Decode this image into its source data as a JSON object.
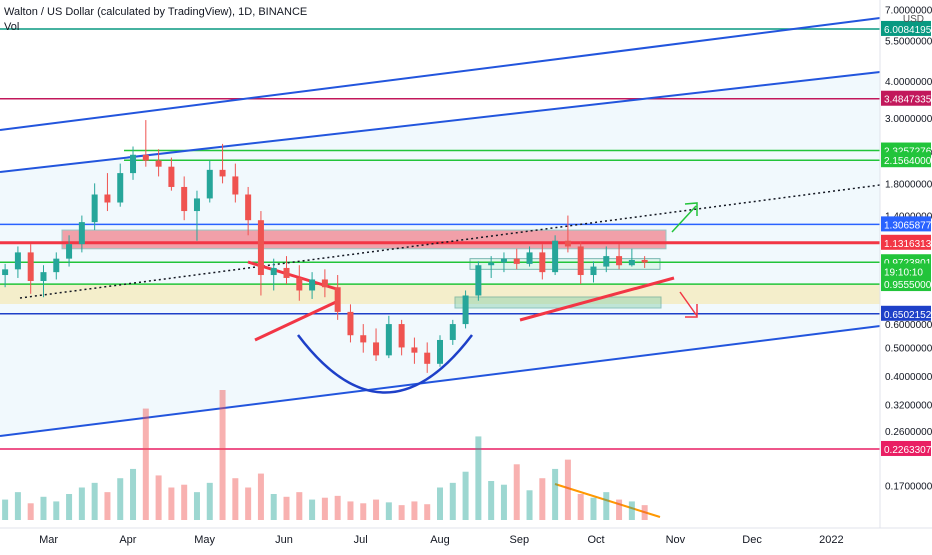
{
  "header": {
    "title": "Walton / US Dollar (calculated by TradingView), 1D, BINANCE",
    "volume_label": "Vol",
    "currency": "USD"
  },
  "chart_data": {
    "type": "candlestick",
    "log_scale": true,
    "grid": false,
    "x_axis": {
      "labels": [
        "Mar",
        "Apr",
        "May",
        "Jun",
        "Jul",
        "Aug",
        "Sep",
        "Oct",
        "Nov",
        "Dec",
        "2022"
      ],
      "label_dates": [
        "2021-03-01",
        "2021-04-01",
        "2021-05-01",
        "2021-06-01",
        "2021-07-01",
        "2021-08-01",
        "2021-09-01",
        "2021-10-01",
        "2021-11-01",
        "2021-12-01",
        "2022-01-01"
      ],
      "range": [
        "2021-02-10",
        "2022-01-20"
      ]
    },
    "y_axis": {
      "tick_values": [
        7.0,
        5.5,
        4.0,
        3.0,
        2.3,
        1.8,
        1.4,
        0.6,
        0.5,
        0.4,
        0.32,
        0.26,
        0.17
      ],
      "tick_labels": [
        "7.0000000",
        "5.5000000",
        "4.0000000",
        "3.0000000",
        "2.3000000",
        "1.8000000",
        "1.4000000",
        "0.6000000",
        "0.5000000",
        "0.4000000",
        "0.3200000",
        "0.2600000",
        "0.1700000"
      ],
      "range": [
        0.13,
        7.3
      ]
    },
    "price_levels": [
      {
        "label": "6.00841950",
        "value": 6.0084195,
        "color": "#089981"
      },
      {
        "label": "3.48473357",
        "value": 3.48473357,
        "color": "#c2185b"
      },
      {
        "label": "2.32572768",
        "value": 2.32572768,
        "color": "#22c43a"
      },
      {
        "label": "2.15640000",
        "value": 2.1564,
        "color": "#22c43a"
      },
      {
        "label": "1.30658778",
        "value": 1.30658778,
        "color": "#2962ff"
      },
      {
        "label": "1.13163136",
        "value": 1.13163136,
        "color": "#f23645"
      },
      {
        "label": "0.97238014",
        "value": 0.97238014,
        "color": "#22c43a"
      },
      {
        "label": "19:10:10",
        "value": 0.905,
        "color": "#22c43a"
      },
      {
        "label": "0.95550000",
        "value": 0.82,
        "color": "#22c43a"
      },
      {
        "label": "0.65021520",
        "value": 0.6502152,
        "color": "#1e40c8"
      },
      {
        "label": "0.22633074",
        "value": 0.22633074,
        "color": "#e91e63"
      }
    ],
    "candles": [
      {
        "date": "2021-02-12",
        "open": 0.88,
        "high": 0.96,
        "low": 0.8,
        "close": 0.92
      },
      {
        "date": "2021-02-17",
        "open": 0.92,
        "high": 1.1,
        "low": 0.86,
        "close": 1.05
      },
      {
        "date": "2021-02-22",
        "open": 1.05,
        "high": 1.12,
        "low": 0.76,
        "close": 0.84
      },
      {
        "date": "2021-02-27",
        "open": 0.84,
        "high": 0.95,
        "low": 0.74,
        "close": 0.9
      },
      {
        "date": "2021-03-04",
        "open": 0.9,
        "high": 1.05,
        "low": 0.85,
        "close": 1.0
      },
      {
        "date": "2021-03-09",
        "open": 1.0,
        "high": 1.2,
        "low": 0.94,
        "close": 1.12
      },
      {
        "date": "2021-03-14",
        "open": 1.12,
        "high": 1.4,
        "low": 1.05,
        "close": 1.33
      },
      {
        "date": "2021-03-19",
        "open": 1.33,
        "high": 1.8,
        "low": 1.25,
        "close": 1.65
      },
      {
        "date": "2021-03-24",
        "open": 1.65,
        "high": 1.95,
        "low": 1.45,
        "close": 1.55
      },
      {
        "date": "2021-03-29",
        "open": 1.55,
        "high": 2.1,
        "low": 1.5,
        "close": 1.95
      },
      {
        "date": "2021-04-03",
        "open": 1.95,
        "high": 2.4,
        "low": 1.85,
        "close": 2.25
      },
      {
        "date": "2021-04-08",
        "open": 2.25,
        "high": 2.95,
        "low": 2.05,
        "close": 2.15
      },
      {
        "date": "2021-04-13",
        "open": 2.15,
        "high": 2.35,
        "low": 1.9,
        "close": 2.05
      },
      {
        "date": "2021-04-18",
        "open": 2.05,
        "high": 2.2,
        "low": 1.7,
        "close": 1.75
      },
      {
        "date": "2021-04-23",
        "open": 1.75,
        "high": 1.9,
        "low": 1.35,
        "close": 1.45
      },
      {
        "date": "2021-04-28",
        "open": 1.45,
        "high": 1.7,
        "low": 1.15,
        "close": 1.6
      },
      {
        "date": "2021-05-03",
        "open": 1.6,
        "high": 2.15,
        "low": 1.55,
        "close": 2.0
      },
      {
        "date": "2021-05-08",
        "open": 2.0,
        "high": 2.45,
        "low": 1.8,
        "close": 1.9
      },
      {
        "date": "2021-05-13",
        "open": 1.9,
        "high": 2.1,
        "low": 1.55,
        "close": 1.65
      },
      {
        "date": "2021-05-18",
        "open": 1.65,
        "high": 1.75,
        "low": 1.2,
        "close": 1.35
      },
      {
        "date": "2021-05-23",
        "open": 1.35,
        "high": 1.45,
        "low": 0.75,
        "close": 0.88
      },
      {
        "date": "2021-05-28",
        "open": 0.88,
        "high": 1.0,
        "low": 0.78,
        "close": 0.93
      },
      {
        "date": "2021-06-02",
        "open": 0.93,
        "high": 1.02,
        "low": 0.82,
        "close": 0.86
      },
      {
        "date": "2021-06-07",
        "open": 0.86,
        "high": 0.95,
        "low": 0.72,
        "close": 0.78
      },
      {
        "date": "2021-06-12",
        "open": 0.78,
        "high": 0.9,
        "low": 0.73,
        "close": 0.85
      },
      {
        "date": "2021-06-17",
        "open": 0.85,
        "high": 0.92,
        "low": 0.74,
        "close": 0.8
      },
      {
        "date": "2021-06-22",
        "open": 0.8,
        "high": 0.88,
        "low": 0.62,
        "close": 0.66
      },
      {
        "date": "2021-06-27",
        "open": 0.66,
        "high": 0.7,
        "low": 0.52,
        "close": 0.55
      },
      {
        "date": "2021-07-02",
        "open": 0.55,
        "high": 0.6,
        "low": 0.48,
        "close": 0.52
      },
      {
        "date": "2021-07-07",
        "open": 0.52,
        "high": 0.58,
        "low": 0.45,
        "close": 0.47
      },
      {
        "date": "2021-07-12",
        "open": 0.47,
        "high": 0.64,
        "low": 0.46,
        "close": 0.6
      },
      {
        "date": "2021-07-17",
        "open": 0.6,
        "high": 0.62,
        "low": 0.47,
        "close": 0.5
      },
      {
        "date": "2021-07-22",
        "open": 0.5,
        "high": 0.54,
        "low": 0.44,
        "close": 0.48
      },
      {
        "date": "2021-07-27",
        "open": 0.48,
        "high": 0.52,
        "low": 0.41,
        "close": 0.44
      },
      {
        "date": "2021-08-01",
        "open": 0.44,
        "high": 0.55,
        "low": 0.43,
        "close": 0.53
      },
      {
        "date": "2021-08-06",
        "open": 0.53,
        "high": 0.62,
        "low": 0.51,
        "close": 0.6
      },
      {
        "date": "2021-08-11",
        "open": 0.6,
        "high": 0.78,
        "low": 0.58,
        "close": 0.75
      },
      {
        "date": "2021-08-16",
        "open": 0.75,
        "high": 0.98,
        "low": 0.72,
        "close": 0.95
      },
      {
        "date": "2021-08-21",
        "open": 0.95,
        "high": 1.02,
        "low": 0.86,
        "close": 0.97
      },
      {
        "date": "2021-08-26",
        "open": 0.97,
        "high": 1.05,
        "low": 0.9,
        "close": 1.0
      },
      {
        "date": "2021-08-31",
        "open": 1.0,
        "high": 1.08,
        "low": 0.92,
        "close": 0.96
      },
      {
        "date": "2021-09-05",
        "open": 0.96,
        "high": 1.1,
        "low": 0.94,
        "close": 1.05
      },
      {
        "date": "2021-09-10",
        "open": 1.05,
        "high": 1.12,
        "low": 0.85,
        "close": 0.9
      },
      {
        "date": "2021-09-15",
        "open": 0.9,
        "high": 1.2,
        "low": 0.88,
        "close": 1.15
      },
      {
        "date": "2021-09-20",
        "open": 1.15,
        "high": 1.4,
        "low": 1.05,
        "close": 1.1
      },
      {
        "date": "2021-09-25",
        "open": 1.1,
        "high": 1.14,
        "low": 0.82,
        "close": 0.88
      },
      {
        "date": "2021-09-30",
        "open": 0.88,
        "high": 0.98,
        "low": 0.83,
        "close": 0.94
      },
      {
        "date": "2021-10-05",
        "open": 0.94,
        "high": 1.1,
        "low": 0.9,
        "close": 1.02
      },
      {
        "date": "2021-10-10",
        "open": 1.02,
        "high": 1.12,
        "low": 0.92,
        "close": 0.95
      },
      {
        "date": "2021-10-15",
        "open": 0.95,
        "high": 1.08,
        "low": 0.94,
        "close": 0.99
      },
      {
        "date": "2021-10-20",
        "open": 0.99,
        "high": 1.02,
        "low": 0.93,
        "close": 0.97
      }
    ],
    "volume": [
      {
        "date": "2021-02-12",
        "value": 22
      },
      {
        "date": "2021-02-17",
        "value": 30
      },
      {
        "date": "2021-02-22",
        "value": 18
      },
      {
        "date": "2021-02-27",
        "value": 25
      },
      {
        "date": "2021-03-04",
        "value": 20
      },
      {
        "date": "2021-03-09",
        "value": 28
      },
      {
        "date": "2021-03-14",
        "value": 35
      },
      {
        "date": "2021-03-19",
        "value": 40
      },
      {
        "date": "2021-03-24",
        "value": 30
      },
      {
        "date": "2021-03-29",
        "value": 45
      },
      {
        "date": "2021-04-03",
        "value": 55
      },
      {
        "date": "2021-04-08",
        "value": 120
      },
      {
        "date": "2021-04-13",
        "value": 48
      },
      {
        "date": "2021-04-18",
        "value": 35
      },
      {
        "date": "2021-04-23",
        "value": 38
      },
      {
        "date": "2021-04-28",
        "value": 30
      },
      {
        "date": "2021-05-03",
        "value": 40
      },
      {
        "date": "2021-05-08",
        "value": 140
      },
      {
        "date": "2021-05-13",
        "value": 45
      },
      {
        "date": "2021-05-18",
        "value": 35
      },
      {
        "date": "2021-05-23",
        "value": 50
      },
      {
        "date": "2021-05-28",
        "value": 28
      },
      {
        "date": "2021-06-02",
        "value": 25
      },
      {
        "date": "2021-06-07",
        "value": 30
      },
      {
        "date": "2021-06-12",
        "value": 22
      },
      {
        "date": "2021-06-17",
        "value": 24
      },
      {
        "date": "2021-06-22",
        "value": 26
      },
      {
        "date": "2021-06-27",
        "value": 20
      },
      {
        "date": "2021-07-02",
        "value": 18
      },
      {
        "date": "2021-07-07",
        "value": 22
      },
      {
        "date": "2021-07-12",
        "value": 19
      },
      {
        "date": "2021-07-17",
        "value": 16
      },
      {
        "date": "2021-07-22",
        "value": 20
      },
      {
        "date": "2021-07-27",
        "value": 17
      },
      {
        "date": "2021-08-01",
        "value": 35
      },
      {
        "date": "2021-08-06",
        "value": 40
      },
      {
        "date": "2021-08-11",
        "value": 52
      },
      {
        "date": "2021-08-16",
        "value": 90
      },
      {
        "date": "2021-08-21",
        "value": 42
      },
      {
        "date": "2021-08-26",
        "value": 38
      },
      {
        "date": "2021-08-31",
        "value": 60
      },
      {
        "date": "2021-09-05",
        "value": 32
      },
      {
        "date": "2021-09-10",
        "value": 45
      },
      {
        "date": "2021-09-15",
        "value": 55
      },
      {
        "date": "2021-09-20",
        "value": 65
      },
      {
        "date": "2021-09-25",
        "value": 28
      },
      {
        "date": "2021-09-30",
        "value": 24
      },
      {
        "date": "2021-10-05",
        "value": 30
      },
      {
        "date": "2021-10-10",
        "value": 22
      },
      {
        "date": "2021-10-15",
        "value": 20
      },
      {
        "date": "2021-10-20",
        "value": 16
      }
    ],
    "colors": {
      "up": "#26a69a",
      "down": "#ef5350",
      "channel": "#2255dd",
      "resistance_zone": "#f23645",
      "support_zone": "#f5e6a3",
      "arrow_up": "#22c43a",
      "arrow_down": "#f23645",
      "volume_trend": "#ff9800"
    }
  }
}
